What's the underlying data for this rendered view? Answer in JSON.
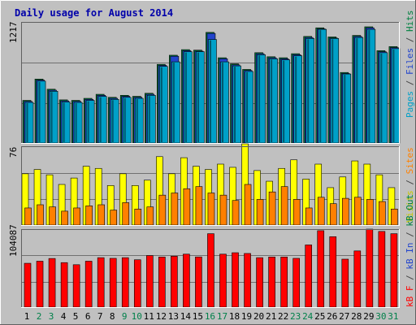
{
  "chart_data": [
    {
      "type": "bar",
      "title": "Daily usage for August 2014",
      "ylabel_parts": [
        {
          "text": "Pages",
          "color": "#00a0c8"
        },
        {
          "text": " / ",
          "color": "#444444"
        },
        {
          "text": "Files",
          "color": "#2244cc"
        },
        {
          "text": " / ",
          "color": "#444444"
        },
        {
          "text": "Hits",
          "color": "#008040"
        }
      ],
      "ymax_label": "1217",
      "ylim": [
        0,
        1217
      ],
      "categories": [
        "1",
        "2",
        "3",
        "4",
        "5",
        "6",
        "7",
        "8",
        "9",
        "10",
        "11",
        "12",
        "13",
        "14",
        "15",
        "16",
        "17",
        "18",
        "19",
        "20",
        "21",
        "22",
        "23",
        "24",
        "25",
        "26",
        "27",
        "28",
        "29",
        "30",
        "31"
      ],
      "weekend_days": [
        "2",
        "3",
        "9",
        "10",
        "16",
        "17",
        "23",
        "24",
        "30",
        "31"
      ],
      "grid": true,
      "series": [
        {
          "name": "Hits",
          "color": "#008040",
          "values": [
            420,
            630,
            530,
            425,
            420,
            440,
            480,
            450,
            470,
            460,
            490,
            775,
            865,
            920,
            915,
            1090,
            840,
            780,
            725,
            890,
            850,
            840,
            880,
            1050,
            1135,
            1045,
            695,
            1060,
            1145,
            910,
            950
          ]
        },
        {
          "name": "Files",
          "color": "#2244cc",
          "values": [
            410,
            620,
            520,
            415,
            410,
            430,
            470,
            440,
            460,
            450,
            480,
            765,
            855,
            910,
            905,
            1080,
            830,
            770,
            715,
            880,
            840,
            830,
            870,
            1040,
            1125,
            1035,
            685,
            1050,
            1135,
            900,
            940
          ]
        },
        {
          "name": "Pages",
          "color": "#00a0c8",
          "values": [
            400,
            610,
            510,
            405,
            400,
            420,
            460,
            430,
            450,
            440,
            470,
            755,
            800,
            900,
            900,
            1020,
            800,
            760,
            705,
            870,
            830,
            820,
            860,
            1030,
            1120,
            1030,
            680,
            1040,
            1120,
            890,
            930
          ]
        }
      ]
    },
    {
      "type": "bar",
      "ylabel_parts": [
        {
          "text": "Visits",
          "color": "#c8c800"
        },
        {
          "text": " / ",
          "color": "#444444"
        },
        {
          "text": "Sites",
          "color": "#ff8000"
        }
      ],
      "ymax_label": "76",
      "ylim": [
        0,
        76
      ],
      "categories": [
        "1",
        "2",
        "3",
        "4",
        "5",
        "6",
        "7",
        "8",
        "9",
        "10",
        "11",
        "12",
        "13",
        "14",
        "15",
        "16",
        "17",
        "18",
        "19",
        "20",
        "21",
        "22",
        "23",
        "24",
        "25",
        "26",
        "27",
        "28",
        "29",
        "30",
        "31"
      ],
      "series": [
        {
          "name": "Visits",
          "color": "#ffff00",
          "values": [
            48,
            52,
            47,
            38,
            44,
            55,
            53,
            37,
            48,
            37,
            42,
            64,
            48,
            63,
            55,
            52,
            57,
            54,
            76,
            51,
            41,
            53,
            61,
            43,
            57,
            35,
            45,
            60,
            57,
            47,
            35
          ]
        },
        {
          "name": "Sites",
          "color": "#ff8000",
          "values": [
            16,
            19,
            17,
            13,
            16,
            18,
            19,
            14,
            21,
            15,
            17,
            28,
            30,
            34,
            36,
            30,
            28,
            23,
            38,
            24,
            31,
            36,
            24,
            16,
            26,
            20,
            25,
            26,
            24,
            22,
            15
          ]
        }
      ]
    },
    {
      "type": "bar",
      "ylabel_parts": [
        {
          "text": "kB F",
          "color": "#ff0000"
        },
        {
          "text": " / ",
          "color": "#444444"
        },
        {
          "text": "kB In",
          "color": "#2244cc"
        },
        {
          "text": " / ",
          "color": "#444444"
        },
        {
          "text": "kB Out",
          "color": "#008040"
        }
      ],
      "ymax_label": "104087",
      "ylim": [
        0,
        104087
      ],
      "categories": [
        "1",
        "2",
        "3",
        "4",
        "5",
        "6",
        "7",
        "8",
        "9",
        "10",
        "11",
        "12",
        "13",
        "14",
        "15",
        "16",
        "17",
        "18",
        "19",
        "20",
        "21",
        "22",
        "23",
        "24",
        "25",
        "26",
        "27",
        "28",
        "29",
        "30",
        "31"
      ],
      "series": [
        {
          "name": "kB F",
          "color": "#ff0000",
          "values": [
            58500,
            61300,
            64900,
            59400,
            56600,
            61300,
            66000,
            65100,
            66000,
            63200,
            68800,
            66900,
            67900,
            70700,
            67000,
            98000,
            70700,
            72600,
            71600,
            66000,
            66900,
            66900,
            65100,
            83000,
            102000,
            94000,
            64000,
            75000,
            104087,
            101000,
            98000
          ]
        }
      ]
    }
  ]
}
